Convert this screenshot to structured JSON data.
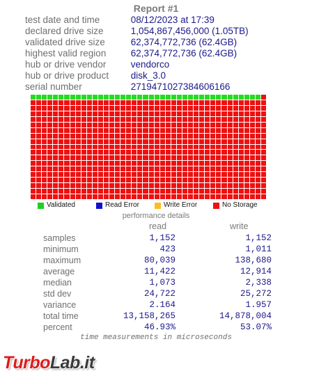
{
  "report": {
    "title": "Report #1",
    "info": [
      {
        "label": "test date and time",
        "value": "08/12/2023  at  17:39"
      },
      {
        "label": "declared drive size",
        "value": "1,054,867,456,000 (1.05TB)"
      },
      {
        "label": "validated drive size",
        "value": "62,374,772,736 (62.4GB)"
      },
      {
        "label": "highest valid region",
        "value": "62,374,772,736 (62.4GB)"
      },
      {
        "label": "hub or drive vendor",
        "value": "vendorco"
      },
      {
        "label": "hub or drive product",
        "value": "disk_3.0"
      },
      {
        "label": "serial number",
        "value": "2719471027384606166"
      }
    ]
  },
  "grid": {
    "columns": 42,
    "rows": 19,
    "validated_cells": 41,
    "colors": {
      "validated": "#22dd22",
      "no_storage": "#ee1111"
    }
  },
  "legend": [
    {
      "label": "Validated",
      "color": "#22cc22"
    },
    {
      "label": "Read Error",
      "color": "#1111cc"
    },
    {
      "label": "Write Error",
      "color": "#ffbb22"
    },
    {
      "label": "No Storage",
      "color": "#ee1111"
    }
  ],
  "performance": {
    "title": "performance details",
    "col_read": "read",
    "col_write": "write",
    "rows": [
      {
        "label": "samples",
        "read": "1,152",
        "write": "1,152"
      },
      {
        "label": "minimum",
        "read": "423",
        "write": "1,011"
      },
      {
        "label": "maximum",
        "read": "80,039",
        "write": "138,680"
      },
      {
        "label": "average",
        "read": "11,422",
        "write": "12,914"
      },
      {
        "label": "median",
        "read": "1,073",
        "write": "2,338"
      },
      {
        "label": "std dev",
        "read": "24,722",
        "write": "25,272"
      },
      {
        "label": "variance",
        "read": "2.164",
        "write": "1.957"
      },
      {
        "label": "total time",
        "read": "13,158,265",
        "write": "14,878,004"
      },
      {
        "label": "percent",
        "read": "46.93%",
        "write": "53.07%"
      }
    ],
    "footnote": "time measurements in microseconds"
  },
  "watermark": {
    "part1": "Turbo",
    "part2": "Lab.it"
  }
}
